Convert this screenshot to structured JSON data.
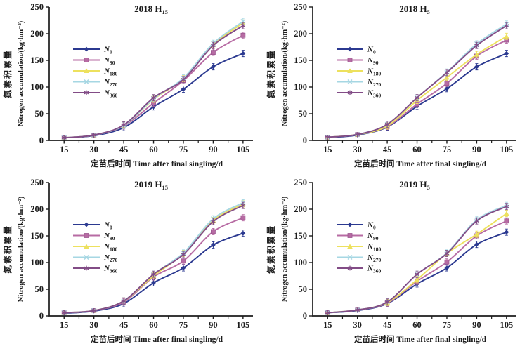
{
  "figure": {
    "background": "#ffffff",
    "axis_color": "#1c1c1c",
    "text_color": "#1c1c1c"
  },
  "chart_data": [
    {
      "id": "2018-h15",
      "type": "line",
      "title": {
        "base": "2018 H",
        "sub": "15"
      },
      "xlabel": "定苗后时间 Time after final singling/d",
      "ylabel": [
        "氮素积累量",
        "Nitrogen accumulation/(kg·hm⁻²)"
      ],
      "x": [
        15,
        30,
        45,
        60,
        75,
        90,
        105
      ],
      "ylim": [
        0,
        250
      ],
      "yticks": [
        0,
        50,
        100,
        150,
        200,
        250
      ],
      "grid": false,
      "legend_position": "inside-left",
      "series": [
        {
          "name": "N0",
          "label_base": "N",
          "label_sub": "0",
          "color": "#2B3990",
          "marker": "diamond",
          "values": [
            5,
            9,
            24,
            63,
            96,
            138,
            163
          ]
        },
        {
          "name": "N90",
          "label_base": "N",
          "label_sub": "90",
          "color": "#B76BA3",
          "marker": "square",
          "values": [
            5,
            10,
            27,
            70,
            112,
            165,
            197
          ]
        },
        {
          "name": "N180",
          "label_base": "N",
          "label_sub": "180",
          "color": "#EDE15E",
          "marker": "triangle",
          "values": [
            5,
            10,
            28,
            77,
            116,
            180,
            220
          ]
        },
        {
          "name": "N270",
          "label_base": "N",
          "label_sub": "270",
          "color": "#A6D7E3",
          "marker": "x",
          "values": [
            5,
            10,
            28,
            78,
            117,
            182,
            223
          ]
        },
        {
          "name": "N360",
          "label_base": "N",
          "label_sub": "360",
          "color": "#824C86",
          "marker": "asterisk",
          "values": [
            5,
            10,
            29,
            80,
            114,
            178,
            215
          ]
        }
      ]
    },
    {
      "id": "2018-h5",
      "type": "line",
      "title": {
        "base": "2018 H",
        "sub": "5"
      },
      "xlabel": "定苗后时间 Time after final singling/d",
      "ylabel": [
        "氮素积累量",
        "Nitrogen accumulation/(kg·hm⁻²)"
      ],
      "x": [
        15,
        30,
        45,
        60,
        75,
        90,
        105
      ],
      "ylim": [
        0,
        250
      ],
      "yticks": [
        0,
        50,
        100,
        150,
        200,
        250
      ],
      "grid": false,
      "legend_position": "inside-left",
      "series": [
        {
          "name": "N0",
          "label_base": "N",
          "label_sub": "0",
          "color": "#2B3990",
          "marker": "diamond",
          "values": [
            5,
            10,
            25,
            64,
            97,
            138,
            163
          ]
        },
        {
          "name": "N90",
          "label_base": "N",
          "label_sub": "90",
          "color": "#B76BA3",
          "marker": "square",
          "values": [
            6,
            11,
            26,
            68,
            107,
            158,
            188
          ]
        },
        {
          "name": "N180",
          "label_base": "N",
          "label_sub": "180",
          "color": "#EDE15E",
          "marker": "triangle",
          "values": [
            6,
            11,
            27,
            75,
            118,
            161,
            195
          ]
        },
        {
          "name": "N270",
          "label_base": "N",
          "label_sub": "270",
          "color": "#A6D7E3",
          "marker": "x",
          "values": [
            6,
            11,
            30,
            80,
            128,
            181,
            218
          ]
        },
        {
          "name": "N360",
          "label_base": "N",
          "label_sub": "360",
          "color": "#824C86",
          "marker": "asterisk",
          "values": [
            6,
            11,
            30,
            80,
            127,
            178,
            215
          ]
        }
      ]
    },
    {
      "id": "2019-h15",
      "type": "line",
      "title": {
        "base": "2019 H",
        "sub": "15"
      },
      "xlabel": "定苗后时间 Time after final singling/d",
      "ylabel": [
        "氮素积累量",
        "Nitrogen accumulation/(kg·hm⁻²)"
      ],
      "x": [
        15,
        30,
        45,
        60,
        75,
        90,
        105
      ],
      "ylim": [
        0,
        250
      ],
      "yticks": [
        0,
        50,
        100,
        150,
        200,
        250
      ],
      "grid": false,
      "legend_position": "inside-left",
      "series": [
        {
          "name": "N0",
          "label_base": "N",
          "label_sub": "0",
          "color": "#2B3990",
          "marker": "diamond",
          "values": [
            5,
            9,
            23,
            62,
            90,
            133,
            155
          ]
        },
        {
          "name": "N90",
          "label_base": "N",
          "label_sub": "90",
          "color": "#B76BA3",
          "marker": "square",
          "values": [
            6,
            10,
            26,
            73,
            103,
            158,
            184
          ]
        },
        {
          "name": "N180",
          "label_base": "N",
          "label_sub": "180",
          "color": "#EDE15E",
          "marker": "triangle",
          "values": [
            6,
            10,
            28,
            75,
            117,
            179,
            210
          ]
        },
        {
          "name": "N270",
          "label_base": "N",
          "label_sub": "270",
          "color": "#A6D7E3",
          "marker": "x",
          "values": [
            6,
            10,
            28,
            78,
            118,
            182,
            212
          ]
        },
        {
          "name": "N360",
          "label_base": "N",
          "label_sub": "360",
          "color": "#824C86",
          "marker": "asterisk",
          "values": [
            6,
            10,
            28,
            78,
            115,
            177,
            207
          ]
        }
      ]
    },
    {
      "id": "2019-h5",
      "type": "line",
      "title": {
        "base": "2019 H",
        "sub": "5"
      },
      "xlabel": "定苗后时间 Time after final singling/d",
      "ylabel": [
        "氮素积累量",
        "Nitrogen accumulation/(kg·hm⁻²)"
      ],
      "x": [
        15,
        30,
        45,
        60,
        75,
        90,
        105
      ],
      "ylim": [
        0,
        250
      ],
      "yticks": [
        0,
        50,
        100,
        150,
        200,
        250
      ],
      "grid": false,
      "legend_position": "inside-left",
      "series": [
        {
          "name": "N0",
          "label_base": "N",
          "label_sub": "0",
          "color": "#2B3990",
          "marker": "diamond",
          "values": [
            6,
            10,
            23,
            60,
            90,
            134,
            157
          ]
        },
        {
          "name": "N90",
          "label_base": "N",
          "label_sub": "90",
          "color": "#B76BA3",
          "marker": "square",
          "values": [
            6,
            11,
            24,
            65,
            101,
            150,
            178
          ]
        },
        {
          "name": "N180",
          "label_base": "N",
          "label_sub": "180",
          "color": "#EDE15E",
          "marker": "triangle",
          "values": [
            6,
            11,
            25,
            68,
            117,
            153,
            192
          ]
        },
        {
          "name": "N270",
          "label_base": "N",
          "label_sub": "270",
          "color": "#A6D7E3",
          "marker": "x",
          "values": [
            6,
            11,
            26,
            78,
            118,
            180,
            207
          ]
        },
        {
          "name": "N360",
          "label_base": "N",
          "label_sub": "360",
          "color": "#824C86",
          "marker": "asterisk",
          "values": [
            6,
            11,
            26,
            78,
            117,
            178,
            205
          ]
        }
      ]
    }
  ]
}
